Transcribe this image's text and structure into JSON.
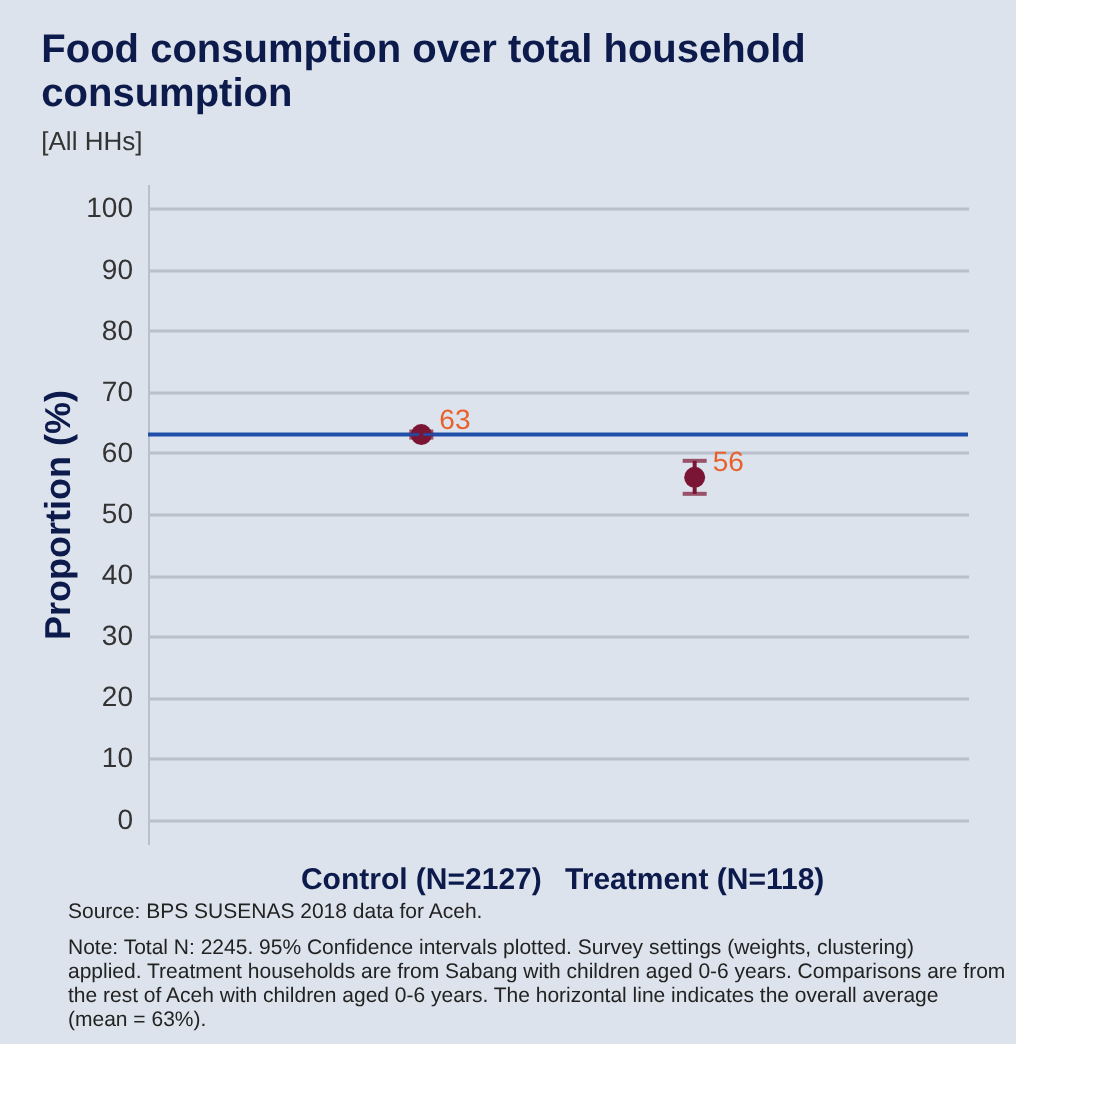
{
  "chart_data": {
    "type": "scatter",
    "title": "Food consumption over total household consumption",
    "subtitle": "[All HHs]",
    "ylabel": "Proportion (%)",
    "categories": [
      "Control (N=2127)",
      "Treatment (N=118)"
    ],
    "series": [
      {
        "color": "#7b1535",
        "values": [
          63,
          56
        ],
        "errors": [
          0.5,
          2.7
        ]
      }
    ],
    "data_labels": true,
    "marker": "circle",
    "ylim": [
      -4,
      104
    ],
    "yticks": [
      0,
      10,
      20,
      30,
      40,
      50,
      60,
      70,
      80,
      90,
      100
    ],
    "grid": "y",
    "ref_lines": [
      {
        "axis": "y",
        "value": 63,
        "color": "#1f4fa8"
      }
    ],
    "annotations": [
      "Source: BPS SUSENAS 2018 data for Aceh.",
      "Note: Total N: 2245. 95% Confidence intervals plotted. Survey settings (weights, clustering) applied. Treatment households are from Sabang with children aged 0-6 years. Comparisons are from the rest of Aceh with children aged 0-6 years. The horizontal line indicates the overall average (mean = 63%)."
    ]
  }
}
